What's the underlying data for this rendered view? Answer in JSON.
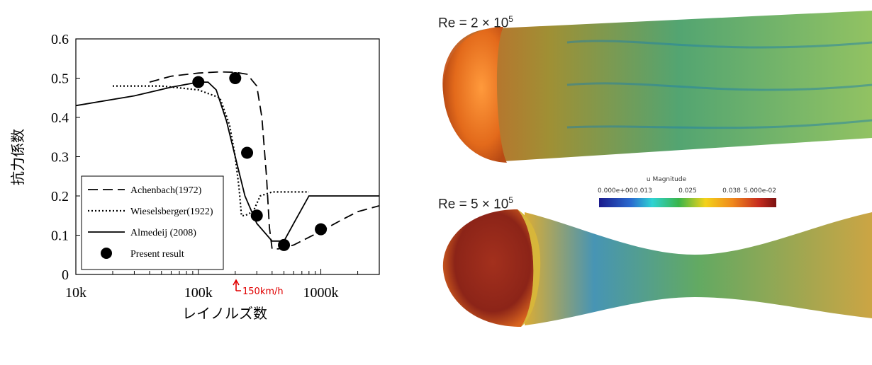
{
  "chart_data": {
    "type": "line",
    "xscale": "log",
    "xlim": [
      10000,
      3000000
    ],
    "ylim": [
      0,
      0.6
    ],
    "xticks": [
      10000,
      100000,
      1000000
    ],
    "xtick_labels": [
      "10k",
      "100k",
      "1000k"
    ],
    "yticks": [
      0,
      0.1,
      0.2,
      0.3,
      0.4,
      0.5,
      0.6
    ],
    "ytick_labels": [
      "0",
      "0.1",
      "0.2",
      "0.3",
      "0.4",
      "0.5",
      "0.6"
    ],
    "xlabel": "レイノルズ数",
    "ylabel": "抗力係数",
    "legend_position": "lower-left",
    "annotation": {
      "text": "150km/h",
      "x": 200000,
      "color": "#e00000"
    },
    "series": [
      {
        "name": "Achenbach(1972)",
        "style": "dashed",
        "x": [
          40000,
          60000,
          100000,
          150000,
          200000,
          250000,
          300000,
          330000,
          360000,
          380000,
          400000,
          450000,
          600000,
          1000000,
          1500000,
          2000000,
          3000000
        ],
        "y": [
          0.49,
          0.505,
          0.513,
          0.516,
          0.515,
          0.51,
          0.48,
          0.4,
          0.25,
          0.12,
          0.065,
          0.065,
          0.075,
          0.11,
          0.14,
          0.16,
          0.175
        ]
      },
      {
        "name": "Wieselsberger(1922)",
        "style": "dotted",
        "x": [
          20000,
          50000,
          100000,
          150000,
          180000,
          200000,
          215000,
          225000,
          240000,
          280000,
          320000,
          400000,
          600000,
          800000
        ],
        "y": [
          0.48,
          0.48,
          0.47,
          0.45,
          0.38,
          0.3,
          0.22,
          0.15,
          0.15,
          0.16,
          0.2,
          0.21,
          0.21,
          0.21
        ]
      },
      {
        "name": "Almedeij (2008)",
        "style": "solid",
        "x": [
          10000,
          30000,
          60000,
          100000,
          120000,
          140000,
          170000,
          200000,
          240000,
          300000,
          400000,
          500000,
          600000,
          800000,
          1000000,
          3000000
        ],
        "y": [
          0.43,
          0.455,
          0.477,
          0.49,
          0.49,
          0.47,
          0.39,
          0.3,
          0.2,
          0.13,
          0.085,
          0.085,
          0.13,
          0.2,
          0.2,
          0.2
        ]
      },
      {
        "name": "Present result",
        "style": "markers",
        "x": [
          100000,
          200000,
          250000,
          300000,
          500000,
          1000000
        ],
        "y": [
          0.49,
          0.5,
          0.31,
          0.15,
          0.075,
          0.115
        ]
      }
    ]
  },
  "simulation": {
    "panels": [
      {
        "re_label": "Re = 2 × 10",
        "re_exp": "5"
      },
      {
        "re_label": "Re = 5 × 10",
        "re_exp": "5"
      }
    ],
    "colorbar": {
      "title": "u Magnitude",
      "ticks": [
        "0.000e+00",
        "0.013",
        "0.025",
        "0.038",
        "5.000e-02"
      ]
    }
  }
}
